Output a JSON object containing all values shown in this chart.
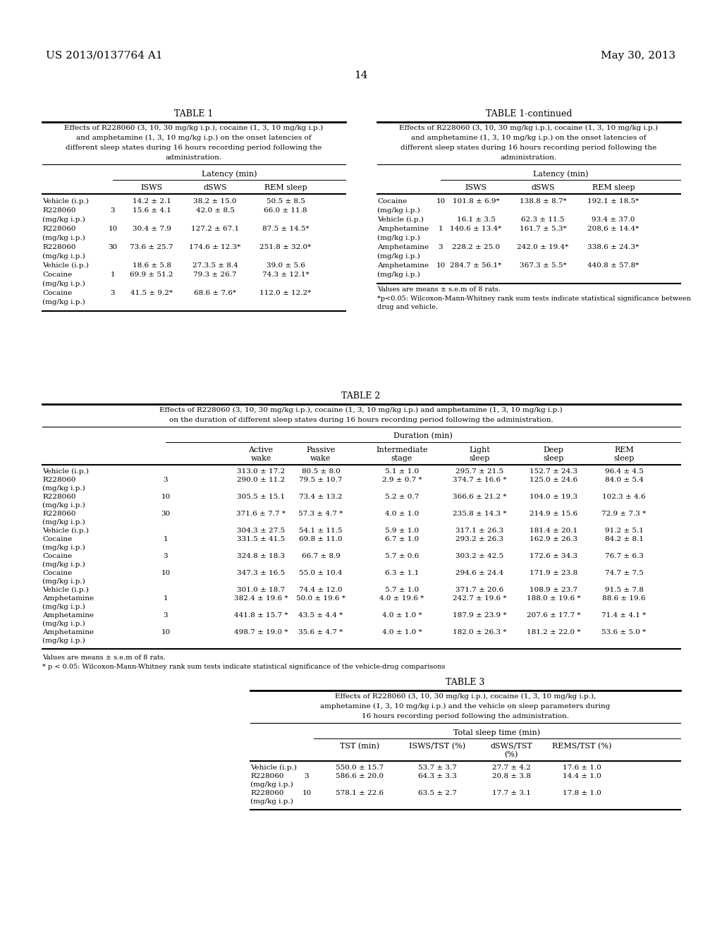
{
  "page_header_left": "US 2013/0137764 A1",
  "page_header_right": "May 30, 2013",
  "page_number": "14",
  "bg_color": "#ffffff",
  "table1_title": "TABLE 1",
  "table1_caption_lines": [
    "Effects of R228060 (3, 10, 30 mg/kg i.p.), cocaine (1, 3, 10 mg/kg i.p.)",
    "and amphetamine (1, 3, 10 mg/kg i.p.) on the onset latencies of",
    "different sleep states during 16 hours recording period following the",
    "administration."
  ],
  "table1_latency_header": "Latency (min)",
  "table1_col_headers": [
    "ISWS",
    "dSWS",
    "REM sleep"
  ],
  "table1_rows": [
    [
      "Vehicle (i.p.)",
      "",
      "14.2 ± 2.1",
      "38.2 ± 15.0",
      "50.5 ± 8.5"
    ],
    [
      "R228060",
      "3",
      "15.6 ± 4.1",
      "42.0 ± 8.5",
      "66.0 ± 11.8"
    ],
    [
      "(mg/kg i.p.)",
      "",
      "",
      "",
      ""
    ],
    [
      "R228060",
      "10",
      "30.4 ± 7.9",
      "127.2 ± 67.1",
      "87.5 ± 14.5*"
    ],
    [
      "(mg/kg i.p.)",
      "",
      "",
      "",
      ""
    ],
    [
      "R228060",
      "30",
      "73.6 ± 25.7",
      "174.6 ± 12.3*",
      "251.8 ± 32.0*"
    ],
    [
      "(mg/kg i.p.)",
      "",
      "",
      "",
      ""
    ],
    [
      "Vehicle (i.p.)",
      "",
      "18.6 ± 5.8",
      "27.3.5 ± 8.4",
      "39.0 ± 5.6"
    ],
    [
      "Cocaine",
      "1",
      "69.9 ± 51.2",
      "79.3 ± 26.7",
      "74.3 ± 12.1*"
    ],
    [
      "(mg/kg i.p.)",
      "",
      "",
      "",
      ""
    ],
    [
      "Cocaine",
      "3",
      "41.5 ± 9.2*",
      "68.6 ± 7.6*",
      "112.0 ± 12.2*"
    ],
    [
      "(mg/kg i.p.)",
      "",
      "",
      "",
      ""
    ]
  ],
  "table1c_title": "TABLE 1-continued",
  "table1c_caption_lines": [
    "Effects of R228060 (3, 10, 30 mg/kg i.p.), cocaine (1, 3, 10 mg/kg i.p.)",
    "and amphetamine (1, 3, 10 mg/kg i.p.) on the onset latencies of",
    "different sleep states during 16 hours recording period following the",
    "administration."
  ],
  "table1c_latency_header": "Latency (min)",
  "table1c_col_headers": [
    "ISWS",
    "dSWS",
    "REM sleep"
  ],
  "table1c_rows": [
    [
      "Cocaine",
      "10",
      "101.8 ± 6.9*",
      "138.8 ± 8.7*",
      "192.1 ± 18.5*"
    ],
    [
      "(mg/kg i.p.)",
      "",
      "",
      "",
      ""
    ],
    [
      "Vehicle (i.p.)",
      "",
      "16.1 ± 3.5",
      "62.3 ± 11.5",
      "93.4 ± 37.0"
    ],
    [
      "Amphetamine",
      "1",
      "140.6 ± 13.4*",
      "161.7 ± 5.3*",
      "208.6 ± 14.4*"
    ],
    [
      "(mg/kg i.p.)",
      "",
      "",
      "",
      ""
    ],
    [
      "Amphetamine",
      "3",
      "228.2 ± 25.0",
      "242.0 ± 19.4*",
      "338.6 ± 24.3*"
    ],
    [
      "(mg/kg i.p.)",
      "",
      "",
      "",
      ""
    ],
    [
      "Amphetamine",
      "10",
      "284.7 ± 56.1*",
      "367.3 ± 5.5*",
      "440.8 ± 57.8*"
    ],
    [
      "(mg/kg i.p.)",
      "",
      "",
      "",
      ""
    ]
  ],
  "table1c_footnote1": "Values are means ± s.e.m of 8 rats.",
  "table1c_footnote2": "*p<0.05: Wilcoxon-Mann-Whitney rank sum tests indicate statistical significance between",
  "table1c_footnote3": "drug and vehicle.",
  "table2_title": "TABLE 2",
  "table2_caption_lines": [
    "Effects of R228060 (3, 10, 30 mg/kg i.p.), cocaine (1, 3, 10 mg/kg i.p.) and amphetamine (1, 3, 10 mg/kg i.p.)",
    "on the duration of different sleep states during 16 hours recording period following the administration."
  ],
  "table2_duration_header": "Duration (min)",
  "table2_col_headers": [
    "Active\nwake",
    "Passive\nwake",
    "Intermediate\nstage",
    "Light\nsleep",
    "Deep\nsleep",
    "REM\nsleep"
  ],
  "table2_rows": [
    [
      "Vehicle (i.p.)",
      "",
      "313.0 ± 17.2",
      "80.5 ± 8.0",
      "5.1 ± 1.0",
      "295.7 ± 21.5",
      "152.7 ± 24.3",
      "96.4 ± 4.5"
    ],
    [
      "R228060",
      "3",
      "290.0 ± 11.2",
      "79.5 ± 10.7",
      "2.9 ± 0.7 *",
      "374.7 ± 16.6 *",
      "125.0 ± 24.6",
      "84.0 ± 5.4"
    ],
    [
      "(mg/kg i.p.)",
      "",
      "",
      "",
      "",
      "",
      "",
      ""
    ],
    [
      "R228060",
      "10",
      "305.5 ± 15.1",
      "73.4 ± 13.2",
      "5.2 ± 0.7",
      "366.6 ± 21.2 *",
      "104.0 ± 19.3",
      "102.3 ± 4.6"
    ],
    [
      "(mg/kg i.p.)",
      "",
      "",
      "",
      "",
      "",
      "",
      ""
    ],
    [
      "R228060",
      "30",
      "371.6 ± 7.7 *",
      "57.3 ± 4.7 *",
      "4.0 ± 1.0",
      "235.8 ± 14.3 *",
      "214.9 ± 15.6",
      "72.9 ± 7.3 *"
    ],
    [
      "(mg/kg i.p.)",
      "",
      "",
      "",
      "",
      "",
      "",
      ""
    ],
    [
      "Vehicle (i.p.)",
      "",
      "304.3 ± 27.5",
      "54.1 ± 11.5",
      "5.9 ± 1.0",
      "317.1 ± 26.3",
      "181.4 ± 20.1",
      "91.2 ± 5.1"
    ],
    [
      "Cocaine",
      "1",
      "331.5 ± 41.5",
      "69.8 ± 11.0",
      "6.7 ± 1.0",
      "293.2 ± 26.3",
      "162.9 ± 26.3",
      "84.2 ± 8.1"
    ],
    [
      "(mg/kg i.p.)",
      "",
      "",
      "",
      "",
      "",
      "",
      ""
    ],
    [
      "Cocaine",
      "3",
      "324.8 ± 18.3",
      "66.7 ± 8.9",
      "5.7 ± 0.6",
      "303.2 ± 42.5",
      "172.6 ± 34.3",
      "76.7 ± 6.3"
    ],
    [
      "(mg/kg i.p.)",
      "",
      "",
      "",
      "",
      "",
      "",
      ""
    ],
    [
      "Cocaine",
      "10",
      "347.3 ± 16.5",
      "55.0 ± 10.4",
      "6.3 ± 1.1",
      "294.6 ± 24.4",
      "171.9 ± 23.8",
      "74.7 ± 7.5"
    ],
    [
      "(mg/kg i.p.)",
      "",
      "",
      "",
      "",
      "",
      "",
      ""
    ],
    [
      "Vehicle (i.p.)",
      "",
      "301.0 ± 18.7",
      "74.4 ± 12.0",
      "5.7 ± 1.0",
      "371.7 ± 20.6",
      "108.9 ± 23.7",
      "91.5 ± 7.8"
    ],
    [
      "Amphetamine",
      "1",
      "382.4 ± 19.6 *",
      "50.0 ± 19.6 *",
      "4.0 ± 19.6 *",
      "242.7 ± 19.6 *",
      "188.0 ± 19.6 *",
      "88.6 ± 19.6"
    ],
    [
      "(mg/kg i.p.)",
      "",
      "",
      "",
      "",
      "",
      "",
      ""
    ],
    [
      "Amphetamine",
      "3",
      "441.8 ± 15.7 *",
      "43.5 ± 4.4 *",
      "4.0 ± 1.0 *",
      "187.9 ± 23.9 *",
      "207.6 ± 17.7 *",
      "71.4 ± 4.1 *"
    ],
    [
      "(mg/kg i.p.)",
      "",
      "",
      "",
      "",
      "",
      "",
      ""
    ],
    [
      "Amphetamine",
      "10",
      "498.7 ± 19.0 *",
      "35.6 ± 4.7 *",
      "4.0 ± 1.0 *",
      "182.0 ± 26.3 *",
      "181.2 ± 22.0 *",
      "53.6 ± 5.0 *"
    ],
    [
      "(mg/kg i.p.)",
      "",
      "",
      "",
      "",
      "",
      "",
      ""
    ]
  ],
  "table2_footnote1": "Values are means ± s.e.m of 8 rats.",
  "table2_footnote2": "* p < 0.05: Wilcoxon-Mann-Whitney rank sum tests indicate statistical significance of the vehicle-drug comparisons",
  "table3_title": "TABLE 3",
  "table3_caption_lines": [
    "Effects of R228060 (3, 10, 30 mg/kg i.p.), cocaine (1, 3, 10 mg/kg i.p.),",
    "amphetamine (1, 3, 10 mg/kg i.p.) and the vehicle on sleep parameters during",
    "16 hours recording period following the administration."
  ],
  "table3_tst_header": "Total sleep time (min)",
  "table3_col_headers": [
    "TST (min)",
    "ISWS/TST (%)",
    "dSWS/TST\n(%)",
    "REMS/TST (%)"
  ],
  "table3_rows": [
    [
      "Vehicle (i.p.)",
      "",
      "550.0 ± 15.7",
      "53.7 ± 3.7",
      "27.7 ± 4.2",
      "17.6 ± 1.0"
    ],
    [
      "R228060",
      "3",
      "586.6 ± 20.0",
      "64.3 ± 3.3",
      "20.8 ± 3.8",
      "14.4 ± 1.0"
    ],
    [
      "(mg/kg i.p.)",
      "",
      "",
      "",
      "",
      ""
    ],
    [
      "R228060",
      "10",
      "578.1 ± 22.6",
      "63.5 ± 2.7",
      "17.7 ± 3.1",
      "17.8 ± 1.0"
    ],
    [
      "(mg/kg i.p.)",
      "",
      "",
      "",
      "",
      ""
    ]
  ]
}
